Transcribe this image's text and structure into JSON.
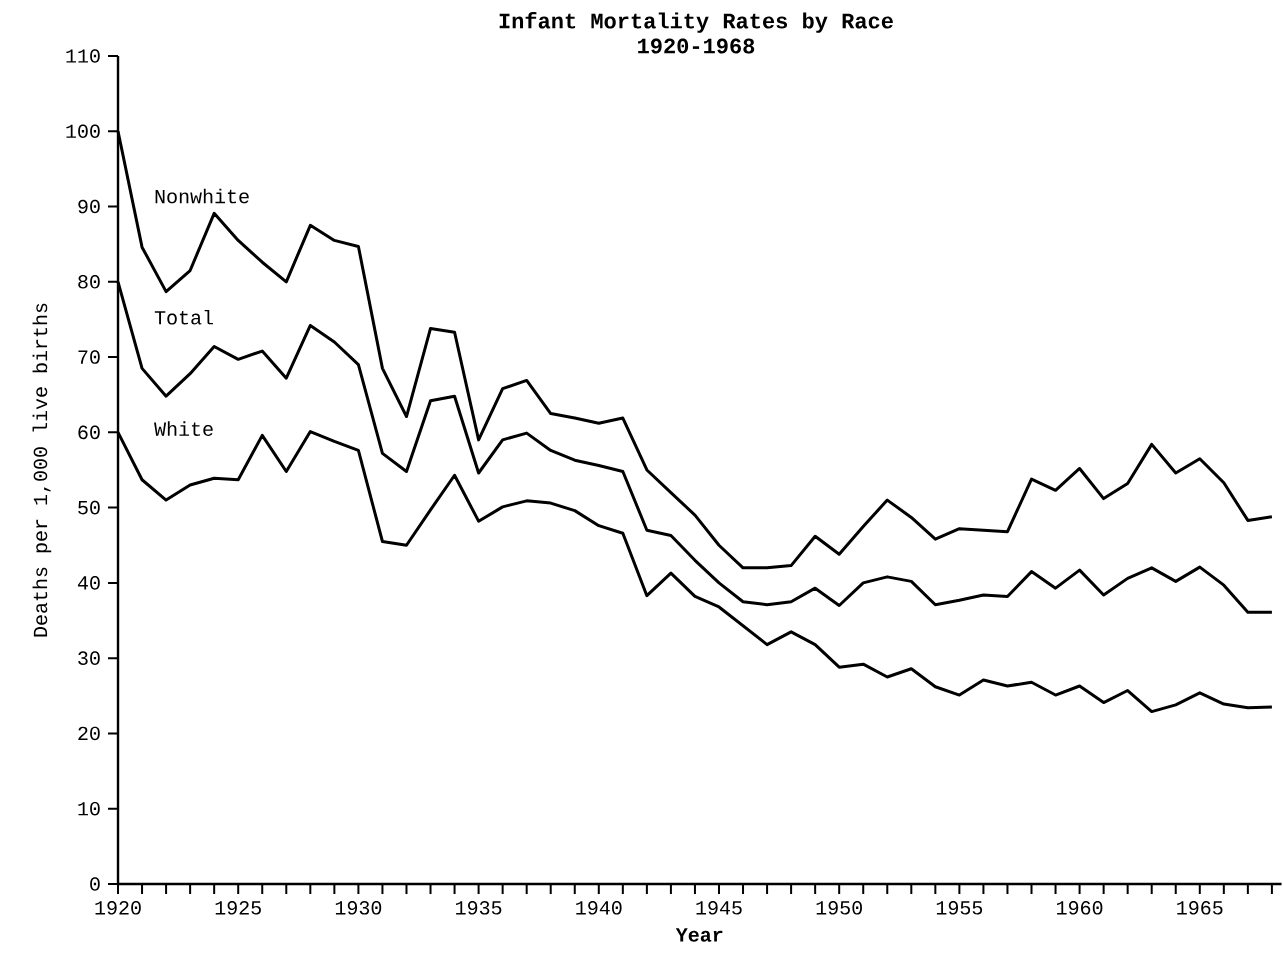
{
  "chart_data": {
    "type": "line",
    "title": "Infant Mortality Rates by Race",
    "subtitle": "1920-1968",
    "xlabel": "Year",
    "ylabel": "Deaths per 1,000 live births",
    "x": [
      1920,
      1921,
      1922,
      1923,
      1924,
      1925,
      1926,
      1927,
      1928,
      1929,
      1930,
      1931,
      1932,
      1933,
      1934,
      1935,
      1936,
      1937,
      1938,
      1939,
      1940,
      1941,
      1942,
      1943,
      1944,
      1945,
      1946,
      1947,
      1948,
      1949,
      1950,
      1951,
      1952,
      1953,
      1954,
      1955,
      1956,
      1957,
      1958,
      1959,
      1960,
      1961,
      1962,
      1963,
      1964,
      1965,
      1966,
      1967,
      1968
    ],
    "series": [
      {
        "name": "Nonwhite",
        "color": "#000000",
        "values": [
          100,
          84.6,
          78.7,
          81.5,
          89.1,
          85.5,
          82.6,
          80.0,
          87.5,
          85.5,
          84.7,
          68.5,
          62.1,
          73.8,
          73.3,
          59.0,
          65.8,
          66.9,
          62.5,
          61.9,
          61.2,
          61.9,
          55.0,
          52.0,
          49.0,
          45.0,
          42.0,
          42.0,
          42.3,
          46.2,
          43.8,
          47.5,
          51.0,
          48.7,
          45.8,
          47.2,
          47.0,
          46.8,
          53.8,
          52.3,
          55.2,
          51.2,
          53.2,
          58.4,
          54.6,
          56.5,
          53.3,
          48.3,
          48.8
        ]
      },
      {
        "name": "Total",
        "color": "#000000",
        "values": [
          80,
          68.5,
          64.8,
          67.8,
          71.4,
          69.7,
          70.8,
          67.2,
          74.2,
          72.0,
          69.0,
          57.2,
          54.8,
          64.2,
          64.8,
          54.6,
          59.0,
          59.9,
          57.6,
          56.3,
          55.6,
          54.8,
          47.0,
          46.3,
          43.0,
          40.0,
          37.5,
          37.1,
          37.5,
          39.3,
          37.0,
          40.0,
          40.8,
          40.2,
          37.1,
          37.7,
          38.4,
          38.2,
          41.5,
          39.3,
          41.7,
          38.4,
          40.6,
          42.0,
          40.2,
          42.1,
          39.7,
          36.1,
          36.1
        ]
      },
      {
        "name": "White",
        "color": "#000000",
        "values": [
          60,
          53.7,
          51.0,
          53.0,
          53.9,
          53.7,
          59.6,
          54.8,
          60.1,
          58.8,
          57.6,
          45.5,
          45.0,
          49.7,
          54.3,
          48.2,
          50.1,
          50.9,
          50.6,
          49.6,
          47.6,
          46.6,
          38.3,
          41.3,
          38.2,
          36.8,
          34.3,
          31.8,
          33.5,
          31.8,
          28.8,
          29.2,
          27.5,
          28.6,
          26.2,
          25.1,
          27.1,
          26.3,
          26.8,
          25.1,
          26.3,
          24.1,
          25.7,
          22.9,
          23.8,
          25.4,
          23.9,
          23.4,
          23.5
        ]
      }
    ],
    "xlim": [
      1920,
      1968.4
    ],
    "ylim": [
      0,
      110
    ],
    "xticks": [
      1920,
      {
        "value": 1921,
        "label": null
      },
      {
        "value": 1922,
        "label": null
      },
      {
        "value": 1923,
        "label": null
      },
      {
        "value": 1924,
        "label": null
      },
      1925,
      {
        "value": 1926,
        "label": null
      },
      {
        "value": 1927,
        "label": null
      },
      {
        "value": 1928,
        "label": null
      },
      {
        "value": 1929,
        "label": null
      },
      1930,
      {
        "value": 1931,
        "label": null
      },
      {
        "value": 1932,
        "label": null
      },
      {
        "value": 1933,
        "label": null
      },
      {
        "value": 1934,
        "label": null
      },
      1935,
      {
        "value": 1936,
        "label": null
      },
      {
        "value": 1937,
        "label": null
      },
      {
        "value": 1938,
        "label": null
      },
      {
        "value": 1939,
        "label": null
      },
      1940,
      {
        "value": 1941,
        "label": null
      },
      {
        "value": 1942,
        "label": null
      },
      {
        "value": 1943,
        "label": null
      },
      {
        "value": 1944,
        "label": null
      },
      1945,
      {
        "value": 1946,
        "label": null
      },
      {
        "value": 1947,
        "label": null
      },
      {
        "value": 1948,
        "label": null
      },
      {
        "value": 1949,
        "label": null
      },
      1950,
      {
        "value": 1951,
        "label": null
      },
      {
        "value": 1952,
        "label": null
      },
      {
        "value": 1953,
        "label": null
      },
      {
        "value": 1954,
        "label": null
      },
      1955,
      {
        "value": 1956,
        "label": null
      },
      {
        "value": 1957,
        "label": null
      },
      {
        "value": 1958,
        "label": null
      },
      {
        "value": 1959,
        "label": null
      },
      1960,
      {
        "value": 1961,
        "label": null
      },
      {
        "value": 1962,
        "label": null
      },
      {
        "value": 1963,
        "label": null
      },
      {
        "value": 1964,
        "label": null
      },
      1965,
      {
        "value": 1966,
        "label": null
      },
      {
        "value": 1967,
        "label": null
      },
      {
        "value": 1968,
        "label": null
      }
    ],
    "yticks": [
      0,
      10,
      20,
      30,
      40,
      50,
      60,
      70,
      80,
      90,
      100,
      110
    ],
    "grid": false,
    "legend": false,
    "marker": "none",
    "line_style": "solid"
  }
}
